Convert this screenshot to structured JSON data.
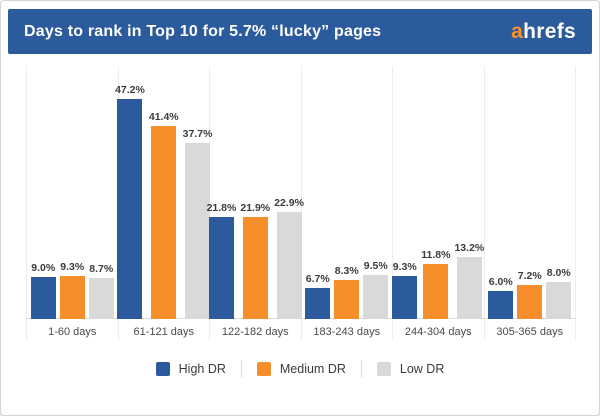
{
  "header": {
    "title": "Days to rank in Top 10 for 5.7% “lucky” pages",
    "logo": {
      "accent_text": "a",
      "rest_text": "hrefs"
    }
  },
  "colors": {
    "header_bg": "#2b5b9d",
    "high_dr": "#2b5b9d",
    "medium_dr": "#f78e2c",
    "low_dr": "#d9d9d9",
    "logo_accent": "#fd9126",
    "gridline": "#ededed",
    "axis_line": "#dcdcdc"
  },
  "chart_data": {
    "type": "bar",
    "title": "Days to rank in Top 10 for 5.7% “lucky” pages",
    "xlabel": "",
    "ylabel": "",
    "value_suffix": "%",
    "ylim": [
      0,
      50
    ],
    "grid": "vertical-category-separators",
    "legend_position": "bottom",
    "categories": [
      "1-60 days",
      "61-121 days",
      "122-182 days",
      "183-243 days",
      "244-304 days",
      "305-365 days"
    ],
    "series": [
      {
        "name": "High DR",
        "color_key": "high_dr",
        "values": [
          9.0,
          47.2,
          21.8,
          6.7,
          9.3,
          6.0
        ]
      },
      {
        "name": "Medium DR",
        "color_key": "medium_dr",
        "values": [
          9.3,
          41.4,
          21.9,
          8.3,
          11.8,
          7.2
        ]
      },
      {
        "name": "Low DR",
        "color_key": "low_dr",
        "values": [
          8.7,
          37.7,
          22.9,
          9.5,
          13.2,
          8.0
        ]
      }
    ]
  }
}
